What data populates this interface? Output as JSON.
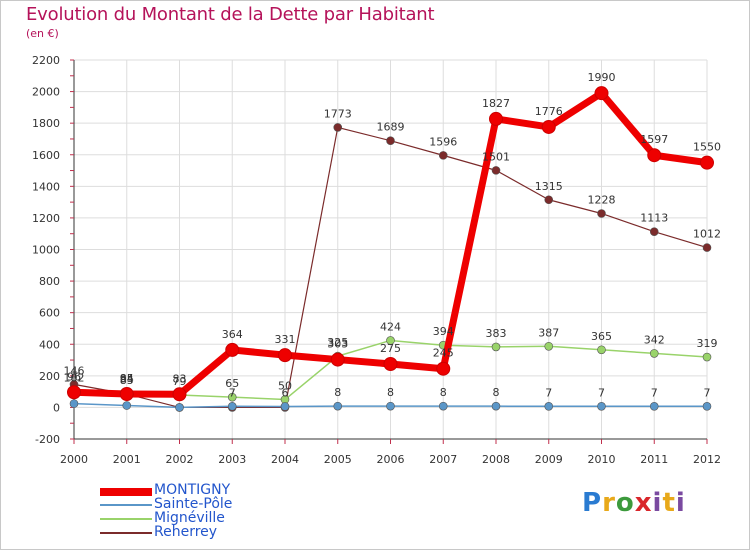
{
  "title": "Evolution du Montant de la Dette par Habitant",
  "subtitle": "(en €)",
  "brand": "Proxiti",
  "colors": {
    "title": "#b5135a",
    "grid": "#dddddd",
    "axis": "#333333"
  },
  "chart_data": {
    "type": "line",
    "title": "Evolution du Montant de la Dette par Habitant",
    "subtitle": "(en €)",
    "xlabel": "",
    "ylabel": "",
    "ylim": [
      -200,
      2200
    ],
    "yticks": [
      -200,
      0,
      200,
      400,
      600,
      800,
      1000,
      1200,
      1400,
      1600,
      1800,
      2000,
      2200
    ],
    "grid": true,
    "legend_position": "bottom-left",
    "x": [
      "2000",
      "2001",
      "2002",
      "2003",
      "2004",
      "2005",
      "2006",
      "2007",
      "2008",
      "2009",
      "2010",
      "2011",
      "2012"
    ],
    "series": [
      {
        "name": "Reherrey",
        "color": "#7b2b2b",
        "width": 1.2,
        "marker": 4,
        "label_dx": 0,
        "label_dy": -10,
        "values": [
          146,
          85,
          0,
          0,
          0,
          1773,
          1689,
          1596,
          1501,
          1315,
          1228,
          1113,
          1012
        ],
        "labels": [
          "146",
          "85",
          "",
          "",
          "",
          "1773",
          "1689",
          "1596",
          "1501",
          "1315",
          "1228",
          "1113",
          "1012"
        ]
      },
      {
        "name": "Mignéville",
        "color": "#99d36a",
        "width": 1.5,
        "marker": 4,
        "label_dx": 0,
        "label_dy": -10,
        "values": [
          102,
          94,
          79,
          65,
          50,
          325,
          424,
          394,
          383,
          387,
          365,
          342,
          319
        ],
        "labels": [
          "102",
          "94",
          "79",
          "65",
          "50",
          "325",
          "424",
          "394",
          "383",
          "387",
          "365",
          "342",
          "319"
        ]
      },
      {
        "name": "Sainte-Pôle",
        "color": "#5a96c8",
        "width": 1.5,
        "marker": 4,
        "label_dx": 0,
        "label_dy": -10,
        "values": [
          24,
          12,
          0,
          7,
          6,
          8,
          8,
          8,
          8,
          7,
          7,
          7,
          7
        ],
        "labels": [
          "",
          "",
          "",
          "7",
          "6",
          "8",
          "8",
          "8",
          "8",
          "7",
          "7",
          "7",
          "7"
        ]
      },
      {
        "name": "MONTIGNY",
        "color": "#ee0000",
        "width": 7,
        "marker": 6.5,
        "label_dx": 0,
        "label_dy": -12,
        "values": [
          96,
          85,
          83,
          364,
          331,
          303,
          275,
          245,
          1827,
          1776,
          1990,
          1597,
          1550
        ],
        "labels": [
          "96",
          "85",
          "83",
          "364",
          "331",
          "303",
          "275",
          "245",
          "1827",
          "1776",
          "1990",
          "1597",
          "1550"
        ]
      }
    ]
  },
  "legend": [
    {
      "name": "MONTIGNY",
      "color": "#ee0000",
      "text_color": "#2255cc"
    },
    {
      "name": "Sainte-Pôle",
      "color": "#5a96c8",
      "text_color": "#2255cc"
    },
    {
      "name": "Mignéville",
      "color": "#99d36a",
      "text_color": "#2255cc"
    },
    {
      "name": "Reherrey",
      "color": "#7b2b2b",
      "text_color": "#2255cc"
    }
  ]
}
